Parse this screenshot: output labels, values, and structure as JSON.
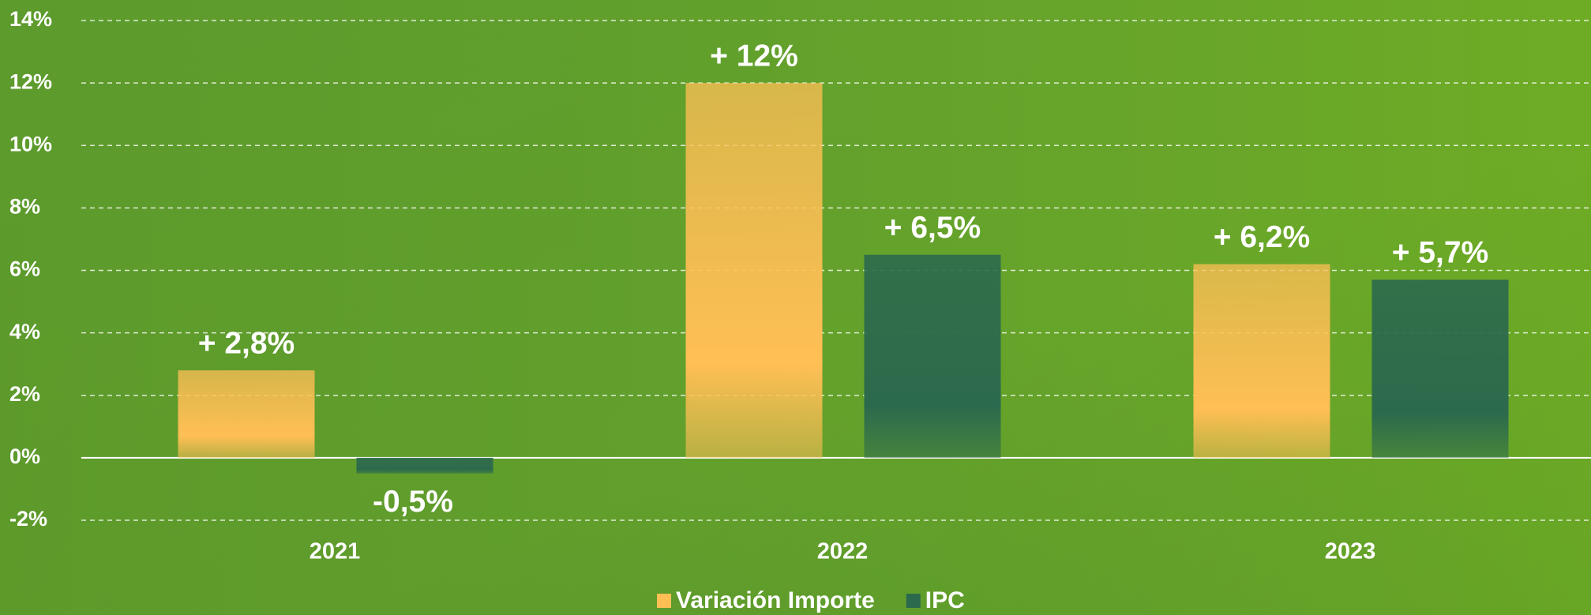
{
  "chart_data": {
    "type": "bar",
    "categories": [
      "2021",
      "2022",
      "2023"
    ],
    "series": [
      {
        "name": "Variación Importe",
        "color": "#ffbf55",
        "values": [
          2.8,
          12,
          6.2
        ],
        "value_labels": [
          "+ 2,8%",
          "+ 12%",
          "+ 6,2%"
        ]
      },
      {
        "name": "IPC",
        "color": "#2c6a4d",
        "values": [
          -0.5,
          6.5,
          5.7
        ],
        "value_labels": [
          "-0,5%",
          "+ 6,5%",
          "+ 5,7%"
        ]
      }
    ],
    "ylim": [
      -2,
      14
    ],
    "yticks": [
      {
        "value": -2,
        "label": "-2%"
      },
      {
        "value": 0,
        "label": "0%"
      },
      {
        "value": 2,
        "label": "2%"
      },
      {
        "value": 4,
        "label": "4%"
      },
      {
        "value": 6,
        "label": "6%"
      },
      {
        "value": 8,
        "label": "8%"
      },
      {
        "value": 10,
        "label": "10%"
      },
      {
        "value": 12,
        "label": "12%"
      },
      {
        "value": 14,
        "label": "14%"
      }
    ],
    "grid": true,
    "legend": "bottom"
  }
}
